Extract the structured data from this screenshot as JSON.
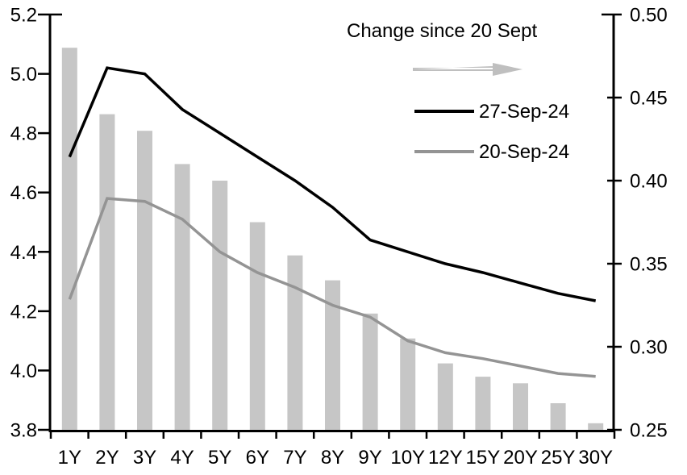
{
  "colors": {
    "bar": "#c6c6c6",
    "line_27_sep": "#000000",
    "line_20_sep": "#949494",
    "arrow": "#bfbfbf",
    "text": "#000000",
    "background": "#ffffff"
  },
  "legend": {
    "title": "Change since 20 Sept",
    "entries": [
      {
        "label": "27-Sep-24"
      },
      {
        "label": "20-Sep-24"
      }
    ]
  },
  "chart_data": {
    "type": "combo-bar-line",
    "title": "",
    "xlabel": "",
    "ylabel_left": "",
    "ylabel_right": "",
    "grid": false,
    "legend_position": "top-center-inside",
    "categories": [
      "1Y",
      "2Y",
      "3Y",
      "4Y",
      "5Y",
      "6Y",
      "7Y",
      "8Y",
      "9Y",
      "10Y",
      "12Y",
      "15Y",
      "20Y",
      "25Y",
      "30Y"
    ],
    "bar_series": {
      "name": "Change since 20 Sept",
      "axis": "right",
      "values": [
        0.48,
        0.44,
        0.43,
        0.41,
        0.4,
        0.375,
        0.355,
        0.34,
        0.32,
        0.305,
        0.29,
        0.282,
        0.278,
        0.266,
        0.254
      ]
    },
    "line_series": [
      {
        "name": "27-Sep-24",
        "axis": "left",
        "values": [
          4.72,
          5.02,
          5.0,
          4.88,
          4.8,
          4.72,
          4.64,
          4.55,
          4.44,
          4.4,
          4.36,
          4.33,
          4.295,
          4.26,
          4.235
        ]
      },
      {
        "name": "20-Sep-24",
        "axis": "left",
        "values": [
          4.24,
          4.58,
          4.57,
          4.51,
          4.4,
          4.33,
          4.28,
          4.22,
          4.18,
          4.1,
          4.06,
          4.04,
          4.015,
          3.99,
          3.98
        ]
      }
    ],
    "left_axis": {
      "min": 3.8,
      "max": 5.2,
      "tick_values": [
        5.2,
        5.0,
        4.8,
        4.6,
        4.4,
        4.2,
        4.0,
        3.8
      ],
      "tick_labels": [
        "5.2",
        "5.0",
        "4.8",
        "4.6",
        "4.4",
        "4.2",
        "4.0",
        "3.8"
      ]
    },
    "right_axis": {
      "min": 0.25,
      "max": 0.5,
      "tick_values": [
        0.5,
        0.45,
        0.4,
        0.35,
        0.3,
        0.25
      ],
      "tick_labels": [
        "0.50",
        "0.45",
        "0.40",
        "0.35",
        "0.30",
        "0.25"
      ]
    }
  }
}
